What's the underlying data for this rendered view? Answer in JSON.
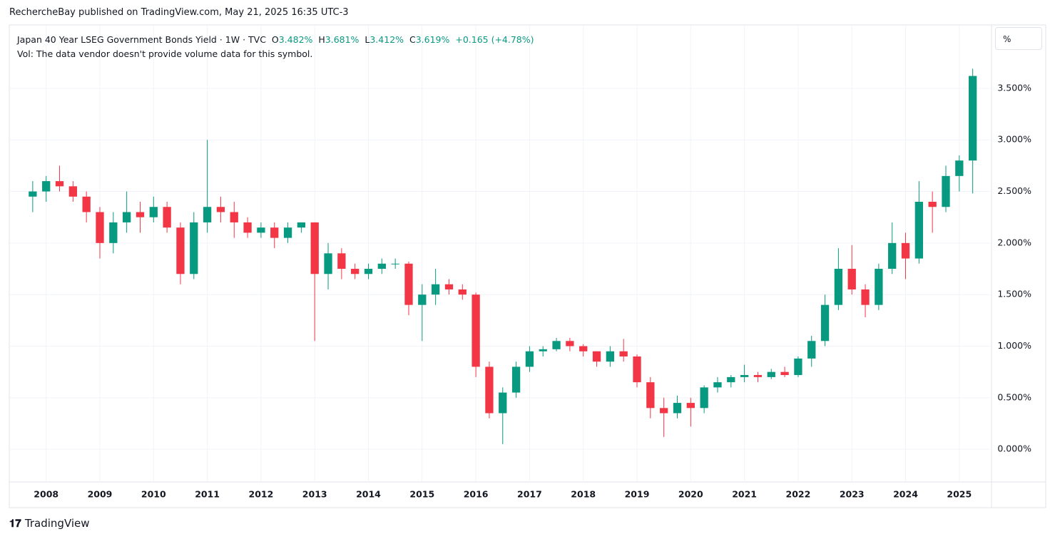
{
  "header": {
    "publisher": "RechercheBay published on TradingView.com, May 21, 2025 16:35 UTC-3",
    "symbol": "Japan 40 Year LSEG Government Bonds Yield · 1W · TVC",
    "o_label": "O",
    "o_value": "3.482%",
    "h_label": "H",
    "h_value": "3.681%",
    "l_label": "L",
    "l_value": "3.412%",
    "c_label": "C",
    "c_value": "3.619%",
    "change": "+0.165 (+4.78%)",
    "volume_note": "Vol: The data vendor doesn't provide volume data for this symbol.",
    "scale_button": "%",
    "brand": "TradingView"
  },
  "chart_data": {
    "type": "candlestick",
    "up_color": "#089981",
    "down_color": "#f23645",
    "grid": true,
    "xlim": [
      2007.34,
      2025.6
    ],
    "ylim": [
      -0.31,
      4.08
    ],
    "xticks": [
      2008,
      2009,
      2010,
      2011,
      2012,
      2013,
      2014,
      2015,
      2016,
      2017,
      2018,
      2019,
      2020,
      2021,
      2022,
      2023,
      2024,
      2025
    ],
    "yticks": [
      {
        "value": 0,
        "label": "0.000%"
      },
      {
        "value": 0.5,
        "label": "0.500%"
      },
      {
        "value": 1,
        "label": "1.000%"
      },
      {
        "value": 1.5,
        "label": "1.500%"
      },
      {
        "value": 2,
        "label": "2.000%"
      },
      {
        "value": 2.5,
        "label": "2.500%"
      },
      {
        "value": 3,
        "label": "3.000%"
      },
      {
        "value": 3.5,
        "label": "3.500%"
      }
    ],
    "x": [
      2007.75,
      2008,
      2008.25,
      2008.5,
      2008.75,
      2009,
      2009.25,
      2009.5,
      2009.75,
      2010,
      2010.25,
      2010.5,
      2010.75,
      2011,
      2011.25,
      2011.5,
      2011.75,
      2012,
      2012.25,
      2012.5,
      2012.75,
      2013,
      2013.25,
      2013.5,
      2013.75,
      2014,
      2014.25,
      2014.5,
      2014.75,
      2015,
      2015.25,
      2015.5,
      2015.75,
      2016,
      2016.25,
      2016.5,
      2016.75,
      2017,
      2017.25,
      2017.5,
      2017.75,
      2018,
      2018.25,
      2018.5,
      2018.75,
      2019,
      2019.25,
      2019.5,
      2019.75,
      2020,
      2020.25,
      2020.5,
      2020.75,
      2021,
      2021.25,
      2021.5,
      2021.75,
      2022,
      2022.25,
      2022.5,
      2022.75,
      2023,
      2023.25,
      2023.5,
      2023.75,
      2024,
      2024.25,
      2024.5,
      2024.75,
      2025,
      2025.25
    ],
    "open": [
      2.45,
      2.5,
      2.6,
      2.55,
      2.45,
      2.3,
      2.0,
      2.2,
      2.3,
      2.25,
      2.35,
      2.15,
      1.7,
      2.2,
      2.35,
      2.3,
      2.2,
      2.1,
      2.15,
      2.05,
      2.15,
      2.2,
      1.7,
      1.9,
      1.75,
      1.7,
      1.75,
      1.8,
      1.8,
      1.4,
      1.5,
      1.6,
      1.55,
      1.5,
      0.8,
      0.35,
      0.55,
      0.8,
      0.95,
      0.97,
      1.05,
      1.0,
      0.95,
      0.85,
      0.95,
      0.9,
      0.65,
      0.4,
      0.35,
      0.45,
      0.4,
      0.6,
      0.65,
      0.7,
      0.72,
      0.7,
      0.75,
      0.72,
      0.88,
      1.05,
      1.4,
      1.75,
      1.55,
      1.4,
      1.75,
      2.0,
      1.85,
      2.4,
      2.35,
      2.65,
      2.8
    ],
    "high": [
      2.6,
      2.65,
      2.75,
      2.6,
      2.5,
      2.35,
      2.3,
      2.5,
      2.4,
      2.45,
      2.4,
      2.2,
      2.3,
      3.0,
      2.45,
      2.4,
      2.25,
      2.2,
      2.2,
      2.2,
      2.2,
      2.2,
      2.0,
      1.95,
      1.8,
      1.8,
      1.85,
      1.85,
      1.82,
      1.6,
      1.75,
      1.65,
      1.6,
      1.52,
      0.85,
      0.6,
      0.85,
      1.0,
      1.0,
      1.08,
      1.08,
      1.02,
      0.95,
      1.0,
      1.07,
      0.92,
      0.7,
      0.5,
      0.52,
      0.5,
      0.62,
      0.7,
      0.72,
      0.82,
      0.75,
      0.78,
      0.8,
      0.9,
      1.1,
      1.5,
      1.95,
      1.98,
      1.6,
      1.8,
      2.2,
      2.1,
      2.6,
      2.5,
      2.75,
      2.85,
      3.69
    ],
    "low": [
      2.3,
      2.4,
      2.5,
      2.4,
      2.2,
      1.85,
      1.9,
      2.1,
      2.1,
      2.2,
      2.1,
      1.6,
      1.65,
      2.1,
      2.2,
      2.05,
      2.05,
      2.05,
      1.95,
      2.0,
      2.1,
      1.05,
      1.55,
      1.65,
      1.65,
      1.65,
      1.7,
      1.75,
      1.3,
      1.05,
      1.4,
      1.5,
      1.45,
      0.7,
      0.3,
      0.05,
      0.5,
      0.75,
      0.9,
      0.95,
      0.95,
      0.9,
      0.8,
      0.8,
      0.85,
      0.6,
      0.3,
      0.12,
      0.3,
      0.22,
      0.35,
      0.55,
      0.6,
      0.65,
      0.65,
      0.68,
      0.7,
      0.7,
      0.8,
      1.0,
      1.35,
      1.5,
      1.28,
      1.35,
      1.7,
      1.65,
      1.8,
      2.1,
      2.3,
      2.5,
      2.48
    ],
    "close": [
      2.5,
      2.6,
      2.55,
      2.45,
      2.3,
      2.0,
      2.2,
      2.3,
      2.25,
      2.35,
      2.15,
      1.7,
      2.2,
      2.35,
      2.3,
      2.2,
      2.1,
      2.15,
      2.05,
      2.15,
      2.2,
      1.7,
      1.9,
      1.75,
      1.7,
      1.75,
      1.8,
      1.8,
      1.4,
      1.5,
      1.6,
      1.55,
      1.5,
      0.8,
      0.35,
      0.55,
      0.8,
      0.95,
      0.97,
      1.05,
      1.0,
      0.95,
      0.85,
      0.95,
      0.9,
      0.65,
      0.4,
      0.35,
      0.45,
      0.4,
      0.6,
      0.65,
      0.7,
      0.72,
      0.7,
      0.75,
      0.72,
      0.88,
      1.05,
      1.4,
      1.75,
      1.55,
      1.4,
      1.75,
      2.0,
      1.85,
      2.4,
      2.35,
      2.65,
      2.8,
      3.62
    ]
  }
}
